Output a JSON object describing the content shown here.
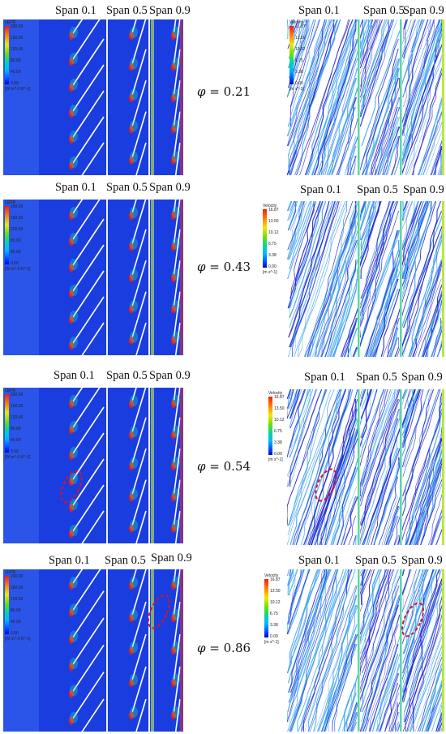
{
  "span_labels": [
    "Span 0.1",
    "Span 0.5",
    "Span 0.9"
  ],
  "lepr_colorbar": {
    "title": "LEPR",
    "ticks": [
      "200.00",
      "160.00",
      "120.00",
      "80.00",
      "40.00",
      "0.00"
    ],
    "unit": "[W m^-3 K^-1]"
  },
  "velocity_colorbar": {
    "title": "Velocity",
    "ticks": [
      "16.87",
      "13.50",
      "10.12",
      "6.75",
      "3.38",
      "0.00"
    ],
    "unit": "[m s^-1]"
  },
  "rows": [
    {
      "phi_symbol": "φ",
      "phi_value": "= 0.21",
      "highlight": "none"
    },
    {
      "phi_symbol": "φ",
      "phi_value": "= 0.43",
      "highlight": "none"
    },
    {
      "phi_symbol": "φ",
      "phi_value": "= 0.54",
      "highlight": "span-0.1"
    },
    {
      "phi_symbol": "φ",
      "phi_value": "= 0.86",
      "highlight": "span-0.9"
    }
  ],
  "colors": {
    "lepr_background": "#1a3de0",
    "blade": "#ffffff",
    "hotspot": "#e8201a",
    "highlight_ellipse": "#d8141e",
    "velocity_background": "#ffffff",
    "streamline_dark": "#1a1ad0",
    "streamline_light": "#3aa0f0"
  }
}
